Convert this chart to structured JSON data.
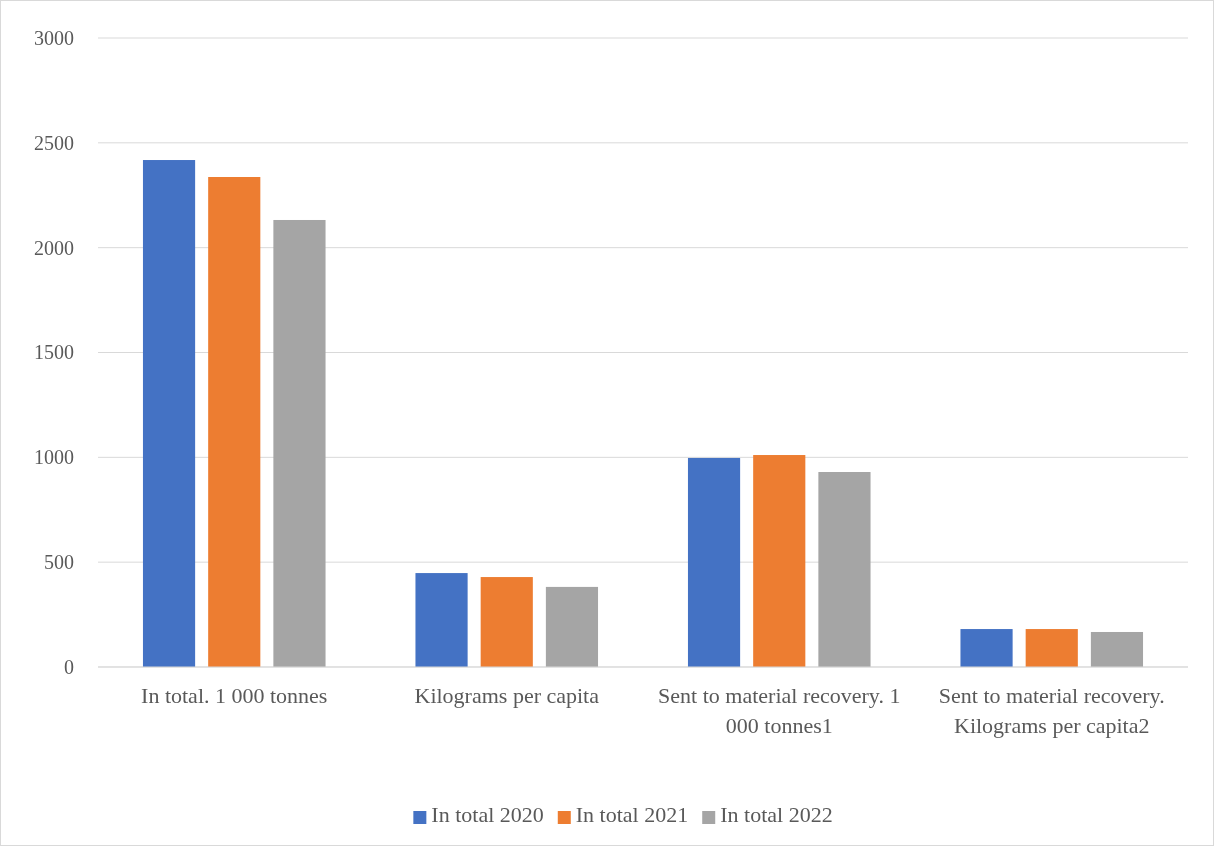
{
  "chart_data": {
    "type": "bar",
    "categories": [
      "In total. 1 000 tonnes",
      "Kilograms per capita",
      "Sent to material recovery. 1 000 tonnes1",
      "Sent to material recovery. Kilograms per capita2"
    ],
    "series": [
      {
        "name": "In total 2020",
        "color": "#4472c4",
        "values": [
          2418,
          448,
          997,
          181
        ]
      },
      {
        "name": "In total 2021",
        "color": "#ed7d31",
        "values": [
          2337,
          429,
          1011,
          181
        ]
      },
      {
        "name": "In total 2022",
        "color": "#a5a5a5",
        "values": [
          2132,
          382,
          930,
          167
        ]
      }
    ],
    "ylim": [
      0,
      3000
    ],
    "yticks": [
      0,
      500,
      1000,
      1500,
      2000,
      2500,
      3000
    ],
    "grid": "y",
    "legend": "bottom"
  }
}
